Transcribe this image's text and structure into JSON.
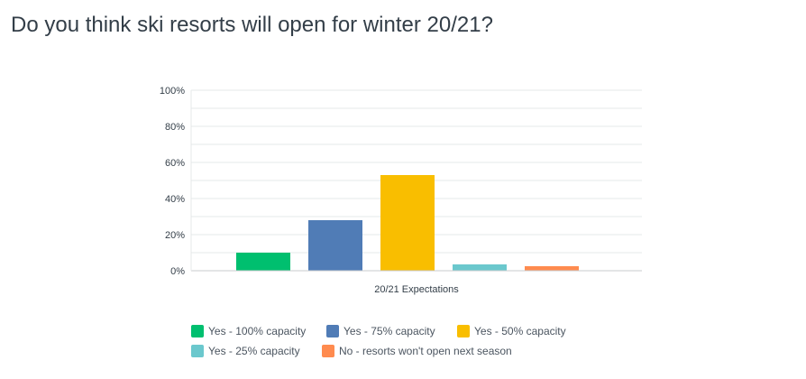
{
  "chart_data": {
    "type": "bar",
    "title": "Do you think ski resorts will open for winter 20/21?",
    "categories": [
      "20/21 Expectations"
    ],
    "series": [
      {
        "name": "Yes - 100% capacity",
        "values": [
          10
        ],
        "color": "#00bf6f"
      },
      {
        "name": "Yes - 75% capacity",
        "values": [
          28
        ],
        "color": "#507cb6"
      },
      {
        "name": "Yes - 50% capacity",
        "values": [
          53
        ],
        "color": "#f9be00"
      },
      {
        "name": "Yes - 25% capacity",
        "values": [
          3.5
        ],
        "color": "#6bc8cd"
      },
      {
        "name": "No - resorts won't open next season",
        "values": [
          2.5
        ],
        "color": "#ff8b4f"
      }
    ],
    "ylim": [
      0,
      100
    ],
    "yticks": [
      "0%",
      "20%",
      "40%",
      "60%",
      "80%",
      "100%"
    ],
    "xlabel": "20/21 Expectations",
    "grid": true,
    "legend_position": "bottom"
  }
}
